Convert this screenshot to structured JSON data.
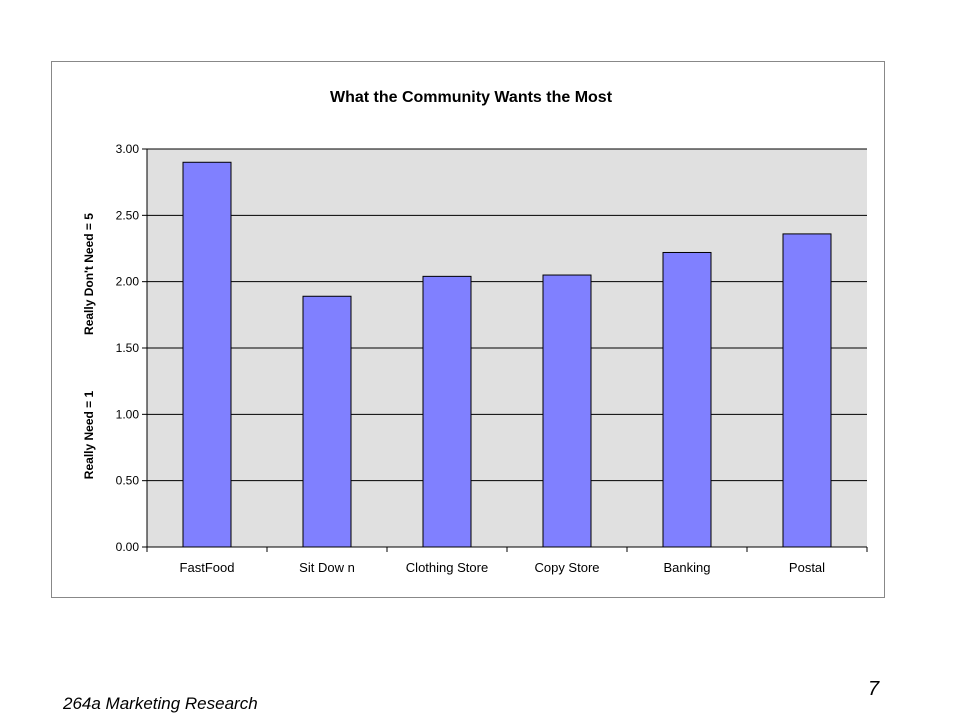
{
  "chart_data": {
    "type": "bar",
    "title": "What the Community Wants the Most",
    "ylabel_lower": "Really Need = 1",
    "ylabel_upper": "Really Don't Need = 5",
    "categories": [
      "FastFood",
      "Sit Dow n",
      "Clothing Store",
      "Copy Store",
      "Banking",
      "Postal"
    ],
    "values": [
      2.9,
      1.89,
      2.04,
      2.05,
      2.22,
      2.36
    ],
    "ylim": [
      0,
      3
    ],
    "yticks": [
      "0.00",
      "0.50",
      "1.00",
      "1.50",
      "2.00",
      "2.50",
      "3.00"
    ],
    "grid": true,
    "legend": "none",
    "colors": {
      "bar_fill": "#8080ff",
      "bar_stroke": "#000000",
      "plot_bg": "#e0e0e0",
      "gridline": "#000000"
    }
  },
  "footer": {
    "course": "264a Marketing Research",
    "page_number": "7"
  }
}
